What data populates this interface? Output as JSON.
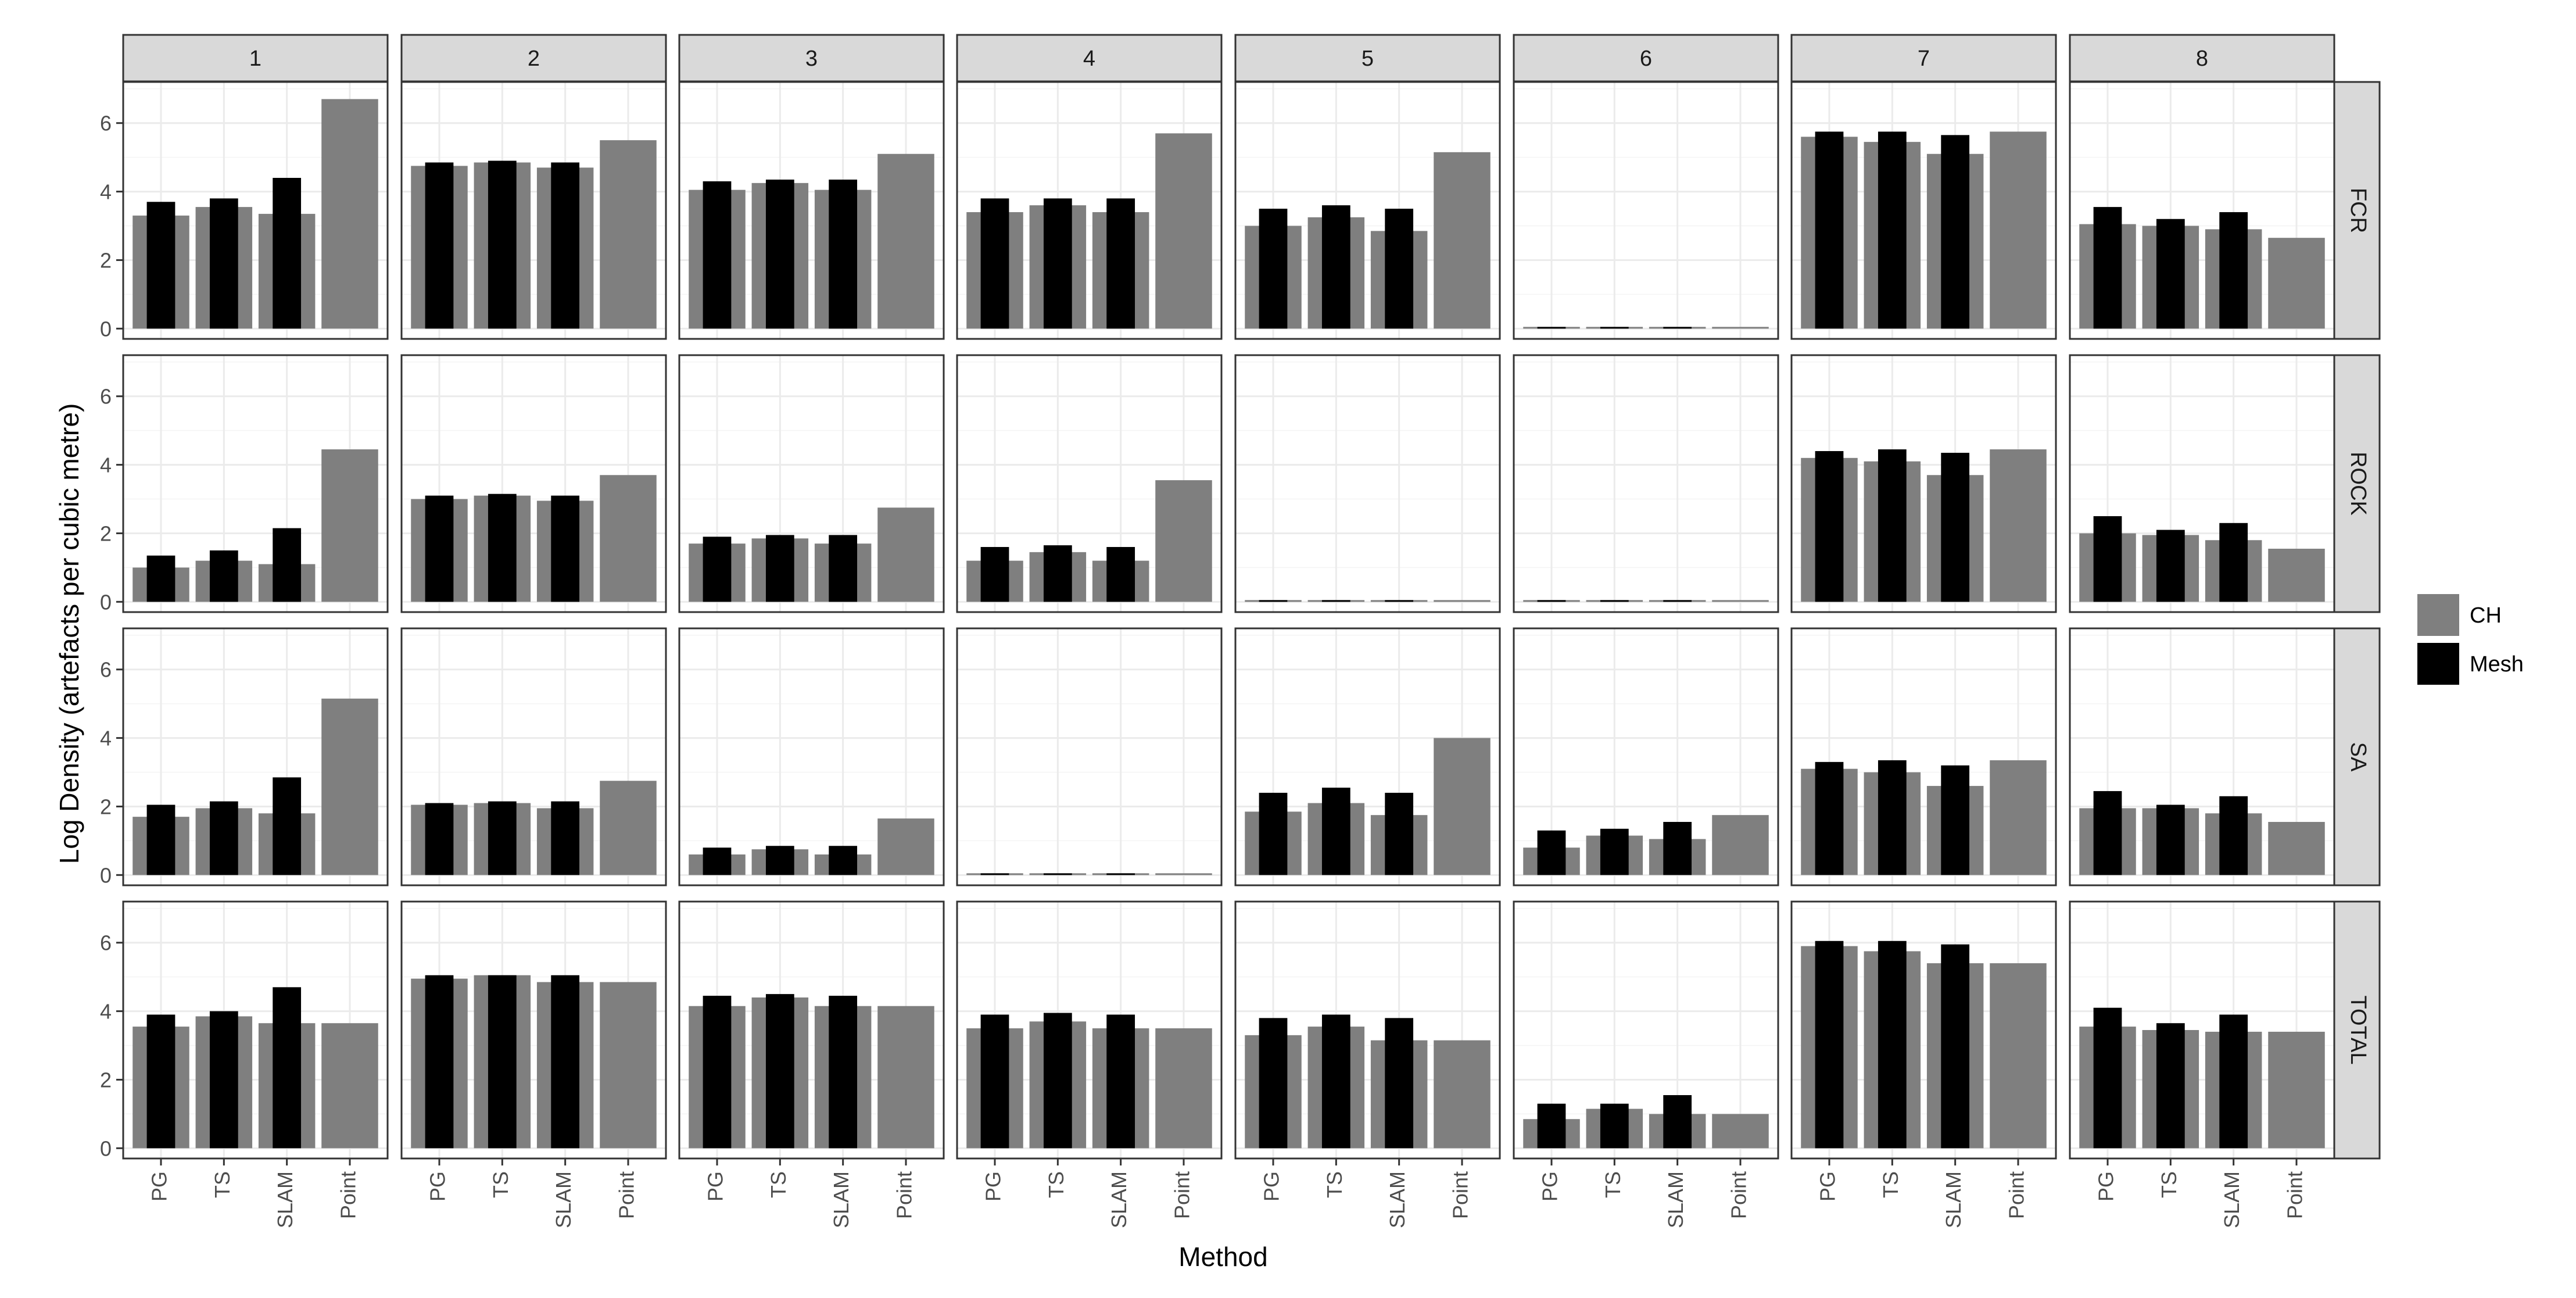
{
  "chart_data": {
    "type": "bar",
    "layout": "facet_grid",
    "xlabel": "Method",
    "ylabel": "Log Density (artefacts per cubic metre)",
    "ylim": [
      -0.3,
      7.2
    ],
    "yticks": [
      0,
      2,
      4,
      6
    ],
    "column_facets": [
      "1",
      "2",
      "3",
      "4",
      "5",
      "6",
      "7",
      "8"
    ],
    "row_facets": [
      "FCR",
      "ROCK",
      "SA",
      "TOTAL"
    ],
    "categories": [
      "PG",
      "TS",
      "SLAM",
      "Point"
    ],
    "legend": [
      {
        "name": "CH",
        "color": "#7f7f7f"
      },
      {
        "name": "Mesh",
        "color": "#000000"
      }
    ],
    "panels": {
      "FCR": {
        "1": {
          "CH": [
            3.3,
            3.55,
            3.35,
            6.7
          ],
          "Mesh": [
            3.7,
            3.8,
            4.4,
            null
          ]
        },
        "2": {
          "CH": [
            4.75,
            4.85,
            4.7,
            5.5
          ],
          "Mesh": [
            4.85,
            4.9,
            4.85,
            null
          ]
        },
        "3": {
          "CH": [
            4.05,
            4.25,
            4.05,
            5.1
          ],
          "Mesh": [
            4.3,
            4.35,
            4.35,
            null
          ]
        },
        "4": {
          "CH": [
            3.4,
            3.6,
            3.4,
            5.7
          ],
          "Mesh": [
            3.8,
            3.8,
            3.8,
            null
          ]
        },
        "5": {
          "CH": [
            3.0,
            3.25,
            2.85,
            5.15
          ],
          "Mesh": [
            3.5,
            3.6,
            3.5,
            null
          ]
        },
        "6": {
          "CH": [
            0.05,
            0.05,
            0.05,
            0.05
          ],
          "Mesh": [
            0.05,
            0.05,
            0.05,
            null
          ]
        },
        "7": {
          "CH": [
            5.6,
            5.45,
            5.1,
            5.75
          ],
          "Mesh": [
            5.75,
            5.75,
            5.65,
            null
          ]
        },
        "8": {
          "CH": [
            3.05,
            3.0,
            2.9,
            2.65
          ],
          "Mesh": [
            3.55,
            3.2,
            3.4,
            null
          ]
        }
      },
      "ROCK": {
        "1": {
          "CH": [
            1.0,
            1.2,
            1.1,
            4.45
          ],
          "Mesh": [
            1.35,
            1.5,
            2.15,
            null
          ]
        },
        "2": {
          "CH": [
            3.0,
            3.1,
            2.95,
            3.7
          ],
          "Mesh": [
            3.1,
            3.15,
            3.1,
            null
          ]
        },
        "3": {
          "CH": [
            1.7,
            1.85,
            1.7,
            2.75
          ],
          "Mesh": [
            1.9,
            1.95,
            1.95,
            null
          ]
        },
        "4": {
          "CH": [
            1.2,
            1.45,
            1.2,
            3.55
          ],
          "Mesh": [
            1.6,
            1.65,
            1.6,
            null
          ]
        },
        "5": {
          "CH": [
            0.05,
            0.05,
            0.05,
            0.05
          ],
          "Mesh": [
            0.05,
            0.05,
            0.05,
            null
          ]
        },
        "6": {
          "CH": [
            0.05,
            0.05,
            0.05,
            0.05
          ],
          "Mesh": [
            0.05,
            0.05,
            0.05,
            null
          ]
        },
        "7": {
          "CH": [
            4.2,
            4.1,
            3.7,
            4.45
          ],
          "Mesh": [
            4.4,
            4.45,
            4.35,
            null
          ]
        },
        "8": {
          "CH": [
            2.0,
            1.95,
            1.8,
            1.55
          ],
          "Mesh": [
            2.5,
            2.1,
            2.3,
            null
          ]
        }
      },
      "SA": {
        "1": {
          "CH": [
            1.7,
            1.95,
            1.8,
            5.15
          ],
          "Mesh": [
            2.05,
            2.15,
            2.85,
            null
          ]
        },
        "2": {
          "CH": [
            2.05,
            2.1,
            1.95,
            2.75
          ],
          "Mesh": [
            2.1,
            2.15,
            2.15,
            null
          ]
        },
        "3": {
          "CH": [
            0.6,
            0.75,
            0.6,
            1.65
          ],
          "Mesh": [
            0.8,
            0.85,
            0.85,
            null
          ]
        },
        "4": {
          "CH": [
            0.05,
            0.05,
            0.05,
            0.05
          ],
          "Mesh": [
            0.05,
            0.05,
            0.05,
            null
          ]
        },
        "5": {
          "CH": [
            1.85,
            2.1,
            1.75,
            4.0
          ],
          "Mesh": [
            2.4,
            2.55,
            2.4,
            null
          ]
        },
        "6": {
          "CH": [
            0.8,
            1.15,
            1.05,
            1.75
          ],
          "Mesh": [
            1.3,
            1.35,
            1.55,
            null
          ]
        },
        "7": {
          "CH": [
            3.1,
            3.0,
            2.6,
            3.35
          ],
          "Mesh": [
            3.3,
            3.35,
            3.2,
            null
          ]
        },
        "8": {
          "CH": [
            1.95,
            1.95,
            1.8,
            1.55
          ],
          "Mesh": [
            2.45,
            2.05,
            2.3,
            null
          ]
        }
      },
      "TOTAL": {
        "1": {
          "CH": [
            3.55,
            3.85,
            3.65,
            3.65
          ],
          "Mesh": [
            3.9,
            4.0,
            4.7,
            null
          ]
        },
        "2": {
          "CH": [
            4.95,
            5.05,
            4.85,
            4.85
          ],
          "Mesh": [
            5.05,
            5.05,
            5.05,
            null
          ]
        },
        "3": {
          "CH": [
            4.15,
            4.4,
            4.15,
            4.15
          ],
          "Mesh": [
            4.45,
            4.5,
            4.45,
            null
          ]
        },
        "4": {
          "CH": [
            3.5,
            3.7,
            3.5,
            3.5
          ],
          "Mesh": [
            3.9,
            3.95,
            3.9,
            null
          ]
        },
        "5": {
          "CH": [
            3.3,
            3.55,
            3.15,
            3.15
          ],
          "Mesh": [
            3.8,
            3.9,
            3.8,
            null
          ]
        },
        "6": {
          "CH": [
            0.85,
            1.15,
            1.0,
            1.0
          ],
          "Mesh": [
            1.3,
            1.3,
            1.55,
            null
          ]
        },
        "7": {
          "CH": [
            5.9,
            5.75,
            5.4,
            5.4
          ],
          "Mesh": [
            6.05,
            6.05,
            5.95,
            null
          ]
        },
        "8": {
          "CH": [
            3.55,
            3.45,
            3.4,
            3.4
          ],
          "Mesh": [
            4.1,
            3.65,
            3.9,
            null
          ]
        }
      }
    }
  }
}
